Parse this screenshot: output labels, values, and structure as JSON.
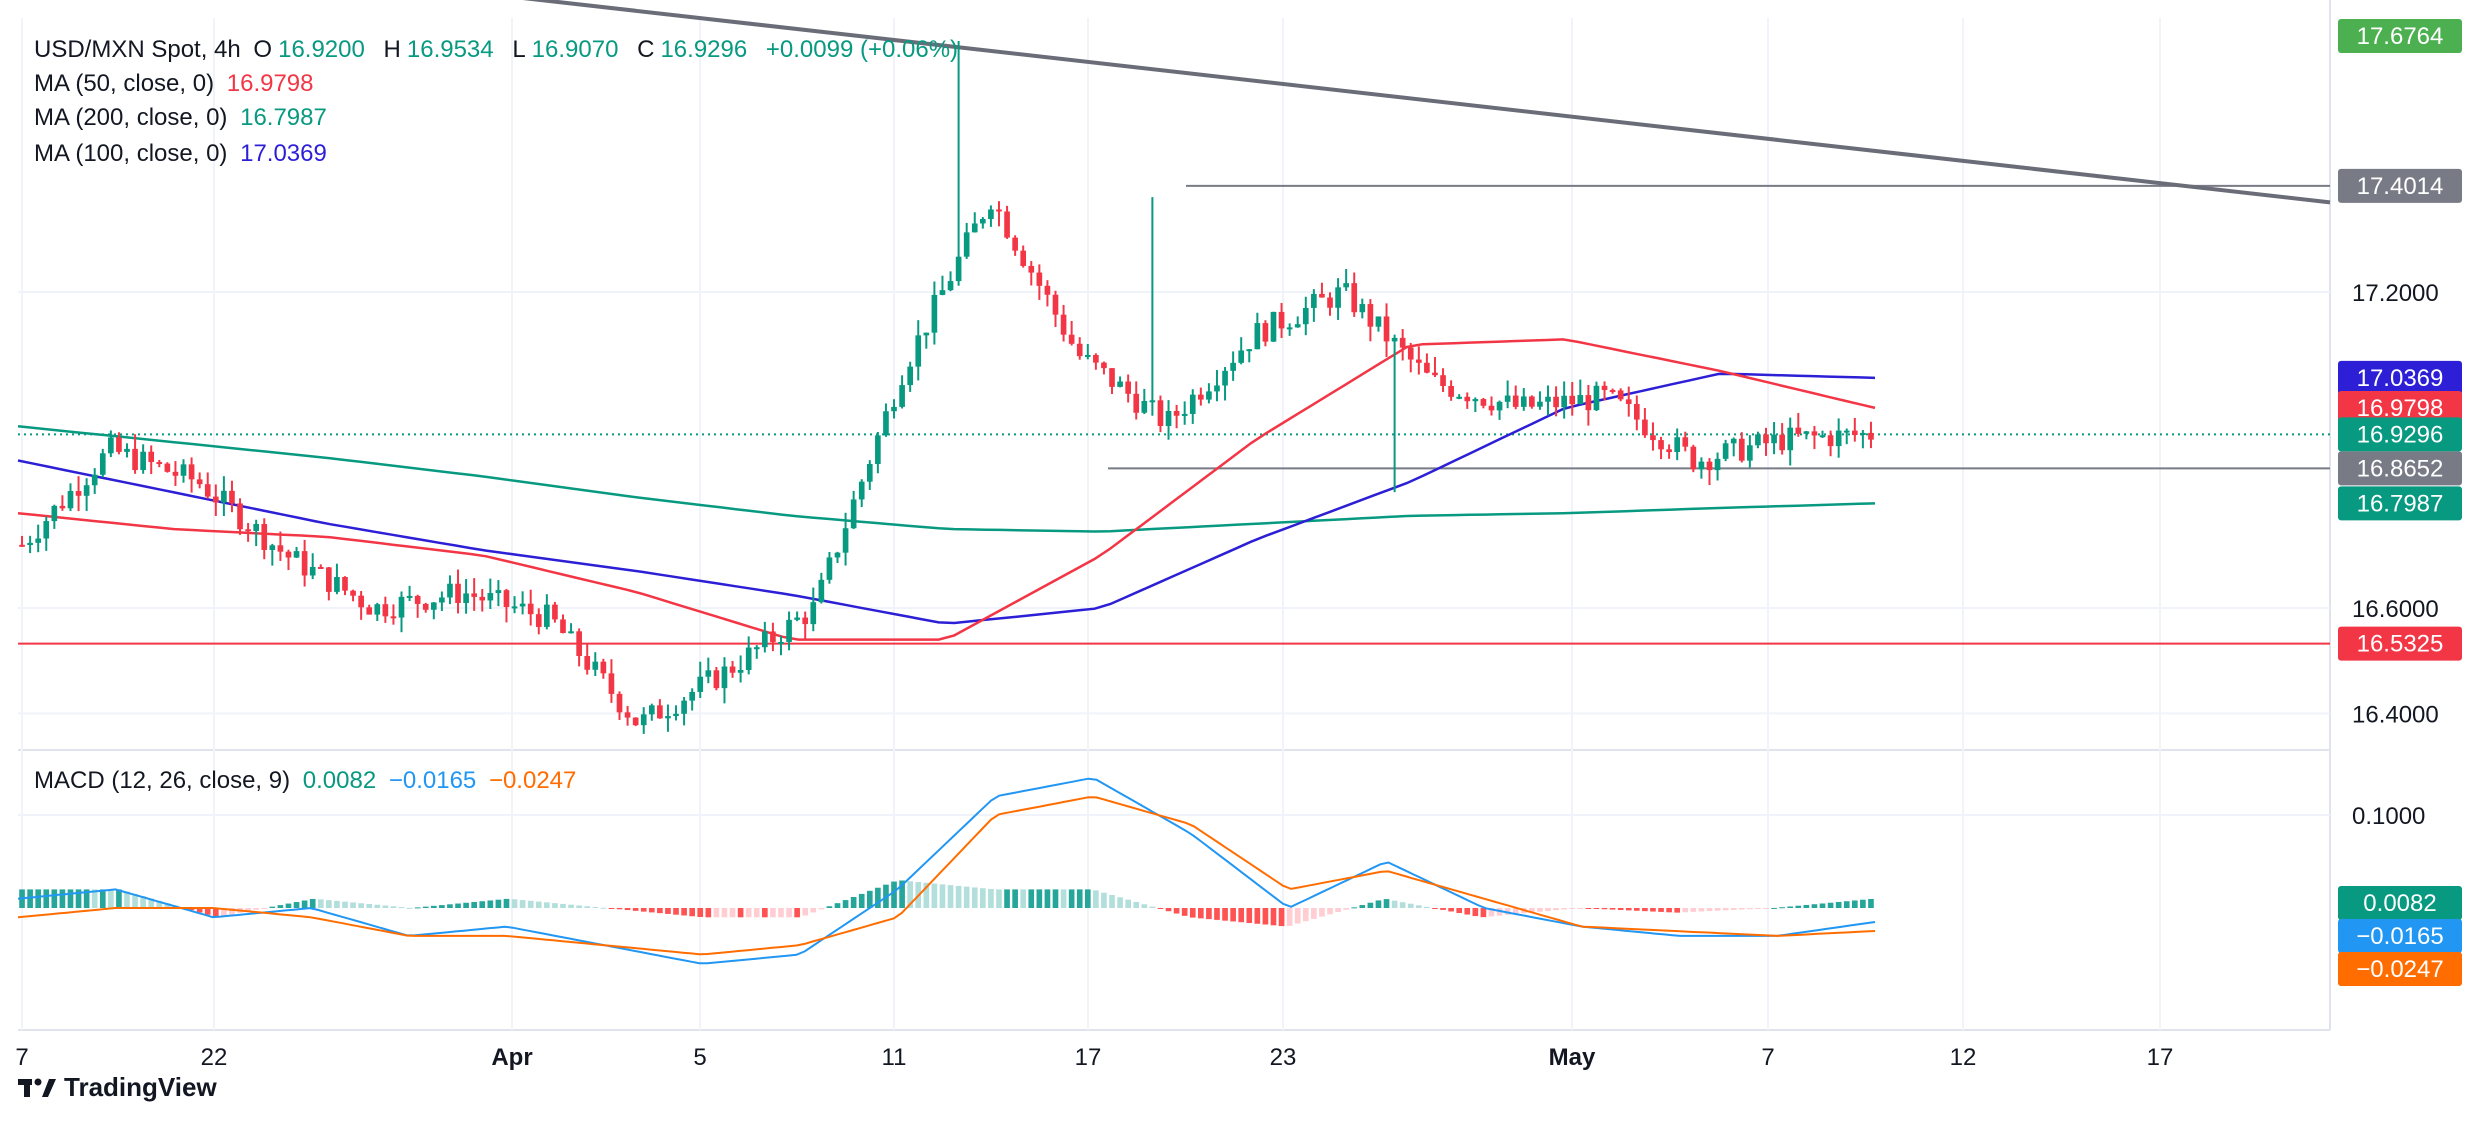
{
  "header": {
    "symbol": "USD/MXN Spot, 4h",
    "o_label": "O",
    "o_value": "16.9200",
    "h_label": "H",
    "h_value": "16.9534",
    "l_label": "L",
    "l_value": "16.9070",
    "c_label": "C",
    "c_value": "16.9296",
    "change": "+0.0099 (+0.06%)"
  },
  "indicators": {
    "ma50": {
      "label": "MA (50, close, 0)",
      "value": "16.9798",
      "color": "#f23645"
    },
    "ma200": {
      "label": "MA (200, close, 0)",
      "value": "16.7987",
      "color": "#089981"
    },
    "ma100": {
      "label": "MA (100, close, 0)",
      "value": "17.0369",
      "color": "#2c1fd6"
    },
    "macd": {
      "label": "MACD (12, 26, close, 9)",
      "hist": "0.0082",
      "macd": "−0.0165",
      "signal": "−0.0247",
      "hist_color": "#089981",
      "macd_color": "#2196f3",
      "signal_color": "#ff6d00"
    }
  },
  "brand": {
    "name": "TradingView",
    "icon": "tradingview-logo-icon"
  },
  "colors": {
    "up": "#089981",
    "down": "#f23645",
    "up_hist": "#26a69a",
    "up_hist_light": "#b2dfdb",
    "down_hist": "#ff5252",
    "down_hist_light": "#ffcdd2"
  },
  "chart_data": {
    "type": "candlestick",
    "ylim": [
      16.34,
      17.72
    ],
    "price_ticks": [
      "17.2000",
      "16.6000",
      "16.4000"
    ],
    "macd_ticks": [
      "0.1000"
    ],
    "x_ticks": [
      "7",
      "22",
      "Apr",
      "5",
      "11",
      "17",
      "23",
      "May",
      "7",
      "12",
      "17"
    ],
    "price_labels": [
      {
        "text": "17.6764",
        "value": 17.6764,
        "color": "#4caf50"
      },
      {
        "text": "17.4014",
        "value": 17.4014,
        "color": "#787b86"
      },
      {
        "text": "17.0369",
        "value": 17.0369,
        "color": "#2c1fd6"
      },
      {
        "text": "16.9798",
        "value": 16.9798,
        "color": "#f23645"
      },
      {
        "text": "16.9296",
        "value": 16.9296,
        "color": "#089981"
      },
      {
        "text": "16.8652",
        "value": 16.8652,
        "color": "#787b86"
      },
      {
        "text": "16.7987",
        "value": 16.7987,
        "color": "#089981"
      },
      {
        "text": "16.5325",
        "value": 16.5325,
        "color": "#f23645"
      }
    ],
    "macd_labels": [
      {
        "text": "0.0082",
        "value": 0.0082,
        "color": "#089981"
      },
      {
        "text": "−0.0165",
        "value": -0.0165,
        "color": "#2196f3"
      },
      {
        "text": "−0.0247",
        "value": -0.0247,
        "color": "#ff6d00"
      }
    ],
    "horizontal_levels": [
      {
        "name": "resistance",
        "value": 17.4014,
        "color": "#787b86"
      },
      {
        "name": "support",
        "value": 16.8652,
        "color": "#787b86"
      },
      {
        "name": "low-line",
        "value": 16.5325,
        "color": "#f23645"
      }
    ],
    "trendline": {
      "from": 17.78,
      "to": 17.37
    },
    "ma200": [
      16.945,
      16.915,
      16.885,
      16.85,
      16.81,
      16.775,
      16.75,
      16.745,
      16.76,
      16.775,
      16.78,
      16.79,
      16.7987
    ],
    "ma100": [
      16.88,
      16.82,
      16.76,
      16.71,
      16.67,
      16.625,
      16.57,
      16.6,
      16.73,
      16.84,
      16.98,
      17.045,
      17.0369
    ],
    "ma50": [
      16.78,
      16.75,
      16.735,
      16.7,
      16.63,
      16.54,
      16.54,
      16.7,
      16.92,
      17.1,
      17.11,
      17.05,
      16.9798
    ],
    "close_sketch": [
      16.72,
      16.9,
      16.84,
      16.7,
      16.6,
      16.63,
      16.58,
      16.38,
      16.48,
      16.6,
      17.05,
      17.38,
      17.08,
      16.95,
      17.12,
      17.2,
      17.03,
      16.98,
      17.0,
      16.88,
      16.92,
      16.93
    ],
    "macd_series": [
      0.01,
      0.02,
      -0.01,
      0.0,
      -0.03,
      -0.02,
      -0.04,
      -0.06,
      -0.05,
      0.02,
      0.12,
      0.14,
      0.08,
      0.0,
      0.05,
      0.0,
      -0.02,
      -0.03,
      -0.03,
      -0.015
    ],
    "signal_series": [
      -0.01,
      0.0,
      0.0,
      -0.01,
      -0.03,
      -0.03,
      -0.04,
      -0.05,
      -0.04,
      -0.01,
      0.1,
      0.12,
      0.09,
      0.02,
      0.04,
      0.01,
      -0.02,
      -0.025,
      -0.03,
      -0.0247
    ]
  }
}
